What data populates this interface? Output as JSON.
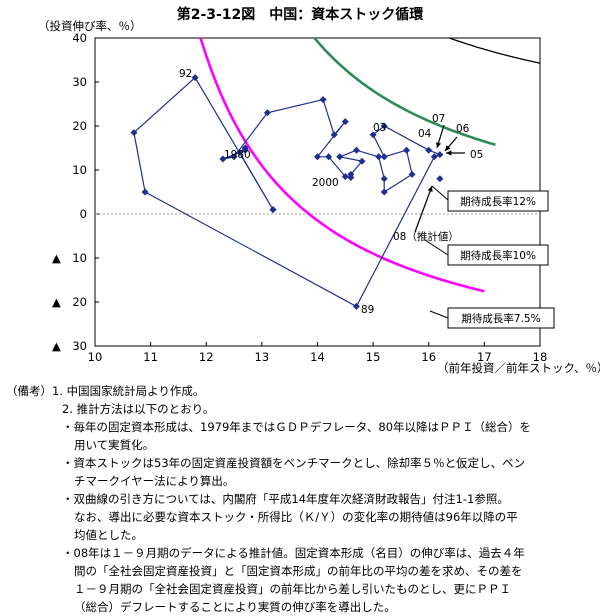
{
  "title": "第2-3-12図　中国：資本ストック循環",
  "chart_data": {
    "type": "scatter",
    "ylabel": "（投資伸び率、％）",
    "xlabel": "（前年投資／前年ストック、％）",
    "xlim": [
      10,
      18
    ],
    "ylim": [
      -30,
      40
    ],
    "x_ticks": [
      "10",
      "11",
      "12",
      "13",
      "14",
      "15",
      "16",
      "17",
      "18"
    ],
    "y_ticks": [
      {
        "v": 40,
        "label": "40"
      },
      {
        "v": 30,
        "label": "30"
      },
      {
        "v": 20,
        "label": "20"
      },
      {
        "v": 10,
        "label": "10"
      },
      {
        "v": 0,
        "label": "0"
      },
      {
        "v": -10,
        "label": "▲　10"
      },
      {
        "v": -20,
        "label": "▲　20"
      },
      {
        "v": -30,
        "label": "▲　30"
      }
    ],
    "series": [
      {
        "type": "line_markers",
        "color": "#1f2f8f",
        "points": [
          [
            13.2,
            1
          ],
          [
            12.6,
            14
          ],
          [
            12.7,
            15
          ],
          [
            12.7,
            14.5
          ],
          [
            12.3,
            12.5
          ],
          [
            12.5,
            13
          ],
          [
            13.1,
            23
          ],
          [
            14.1,
            26
          ],
          [
            14.3,
            18
          ],
          [
            14.5,
            21
          ],
          [
            14.0,
            13
          ],
          [
            14.2,
            13
          ],
          [
            14.5,
            8.5
          ],
          [
            14.6,
            8.3
          ],
          [
            14.6,
            9
          ],
          [
            14.8,
            12
          ],
          [
            14.4,
            13
          ],
          [
            14.7,
            14.5
          ],
          [
            15.1,
            13
          ],
          [
            15.2,
            8
          ],
          [
            15.2,
            5
          ],
          [
            15.7,
            9
          ],
          [
            15.6,
            14.5
          ],
          [
            15.2,
            13
          ],
          [
            15.0,
            18
          ],
          [
            15.2,
            20
          ],
          [
            16.0,
            14.5
          ],
          [
            16.2,
            13.5
          ],
          [
            16.1,
            13
          ],
          [
            14.7,
            -21
          ],
          [
            10.9,
            5
          ],
          [
            10.7,
            18.5
          ],
          [
            11.8,
            31
          ],
          [
            13.2,
            1
          ]
        ]
      },
      {
        "type": "marker",
        "color": "#1f2f8f",
        "points": [
          [
            16.2,
            8
          ]
        ]
      }
    ],
    "curves": [
      {
        "name": "期待成長率12%",
        "color": "#000000",
        "k": 19.0
      },
      {
        "name": "期待成長率10%",
        "color": "#2e8b57",
        "k": 10.0
      },
      {
        "name": "期待成長率7.5%",
        "color": "#ff00ff",
        "k": 0.0
      }
    ],
    "point_labels": [
      "92",
      "1980",
      "03",
      "04",
      "07",
      "06",
      "05",
      "2000",
      "89",
      "08（推計値）"
    ],
    "legend_boxes": [
      "期待成長率12%",
      "期待成長率10%",
      "期待成長率7.5%"
    ]
  },
  "notes": [
    "（備考）1.  中国国家統計局より作成。",
    "2.  推計方法は以下のとおり。",
    "・毎年の固定資本形成は、1979年まではＧＤＰデフレータ、80年以降はＰＰＩ（総合）を",
    "用いて実質化。",
    "・資本ストックは53年の固定資産投資額をベンチマークとし、除却率５％と仮定し、ベン",
    "チマークイヤー法により算出。",
    "・双曲線の引き方については、内閣府「平成14年度年次経済財政報告」付注1-1参照。",
    "なお、導出に必要な資本ストック・所得比（Ｋ/Ｙ）の変化率の期待値は96年以降の平",
    "均値とした。",
    "・08年は１－９月期のデータによる推計値。固定資本形成（名目）の伸び率は、過去４年",
    "間の「全社会固定資産投資」と「固定資本形成」の前年比の平均の差を求め、その差を",
    "１－９月期の「全社会固定資産投資」の前年比から差し引いたものとし、更にＰＰＩ",
    "（総合）デフレートすることにより実質の伸び率を導出した。"
  ]
}
